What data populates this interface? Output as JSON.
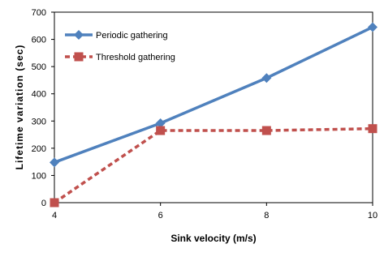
{
  "chart_data": {
    "type": "line",
    "xlabel": "Sink velocity (m/s)",
    "ylabel": "Lifetime variation (sec)",
    "x": [
      4,
      6,
      8,
      10
    ],
    "xlim": [
      4,
      10
    ],
    "ylim": [
      0,
      700
    ],
    "x_ticks": [
      "4",
      "6",
      "8",
      "10"
    ],
    "y_ticks": [
      "0",
      "100",
      "200",
      "300",
      "400",
      "500",
      "600",
      "700"
    ],
    "grid": false,
    "legend_position": "top-left",
    "series": [
      {
        "name": "Periodic gathering",
        "values": [
          148,
          292,
          458,
          645
        ],
        "color": "#4f81bd",
        "marker": "diamond",
        "line_style": "solid"
      },
      {
        "name": "Threshold gathering",
        "values": [
          0,
          265,
          265,
          272
        ],
        "color": "#c0504d",
        "marker": "square",
        "line_style": "dashed"
      }
    ]
  }
}
